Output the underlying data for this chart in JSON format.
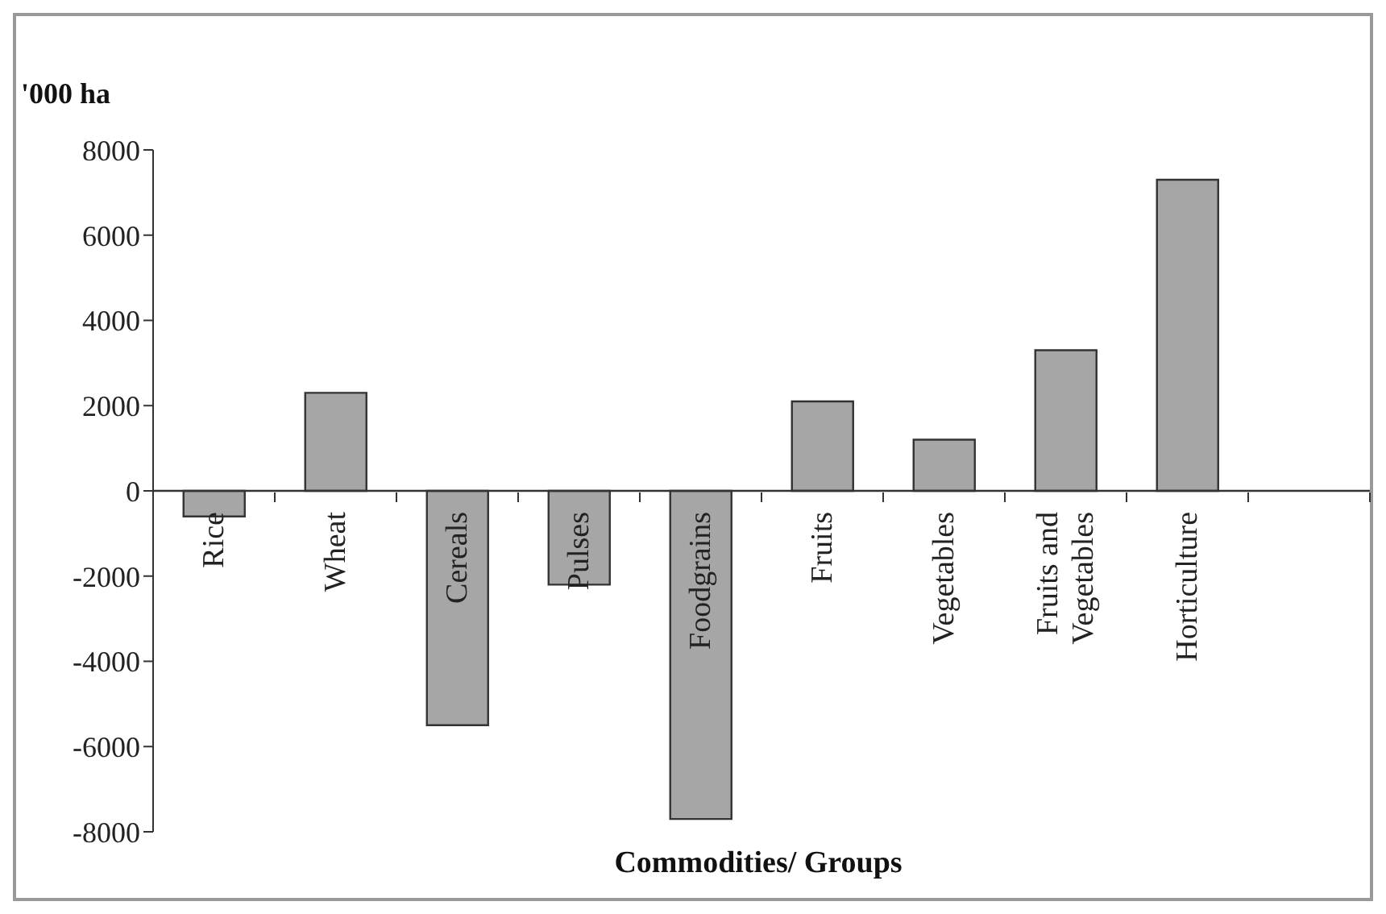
{
  "chart_data": {
    "type": "bar",
    "ylabel": "'000 ha",
    "xlabel": "Commodities/ Groups",
    "categories": [
      "Rice",
      "Wheat",
      "Cereals",
      "Pulses",
      "Foodgrains",
      "Fruits",
      "Vegetables",
      "Fruits and Vegetables",
      "Horticulture",
      null
    ],
    "values": [
      -600,
      2300,
      -5500,
      -2200,
      -7700,
      2100,
      1200,
      3300,
      7300,
      null
    ],
    "color": "#a6a6a6",
    "ylim": [
      -8000,
      8000
    ],
    "yticks": [
      -8000,
      -6000,
      -4000,
      -2000,
      0,
      2000,
      4000,
      6000,
      8000
    ],
    "grid": false,
    "legend": false
  }
}
